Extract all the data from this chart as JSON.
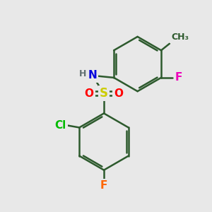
{
  "background_color": "#e8e8e8",
  "bond_color": "#2d5a2d",
  "bond_width": 1.8,
  "atom_colors": {
    "N": "#0000dd",
    "H": "#607070",
    "S": "#cccc00",
    "O": "#ff0000",
    "Cl": "#00bb00",
    "F_bottom": "#ff6600",
    "F_right": "#ee00bb",
    "C": "#2d5a2d"
  },
  "figsize": [
    3.0,
    3.0
  ],
  "dpi": 100,
  "xlim": [
    0,
    10
  ],
  "ylim": [
    0,
    10
  ]
}
